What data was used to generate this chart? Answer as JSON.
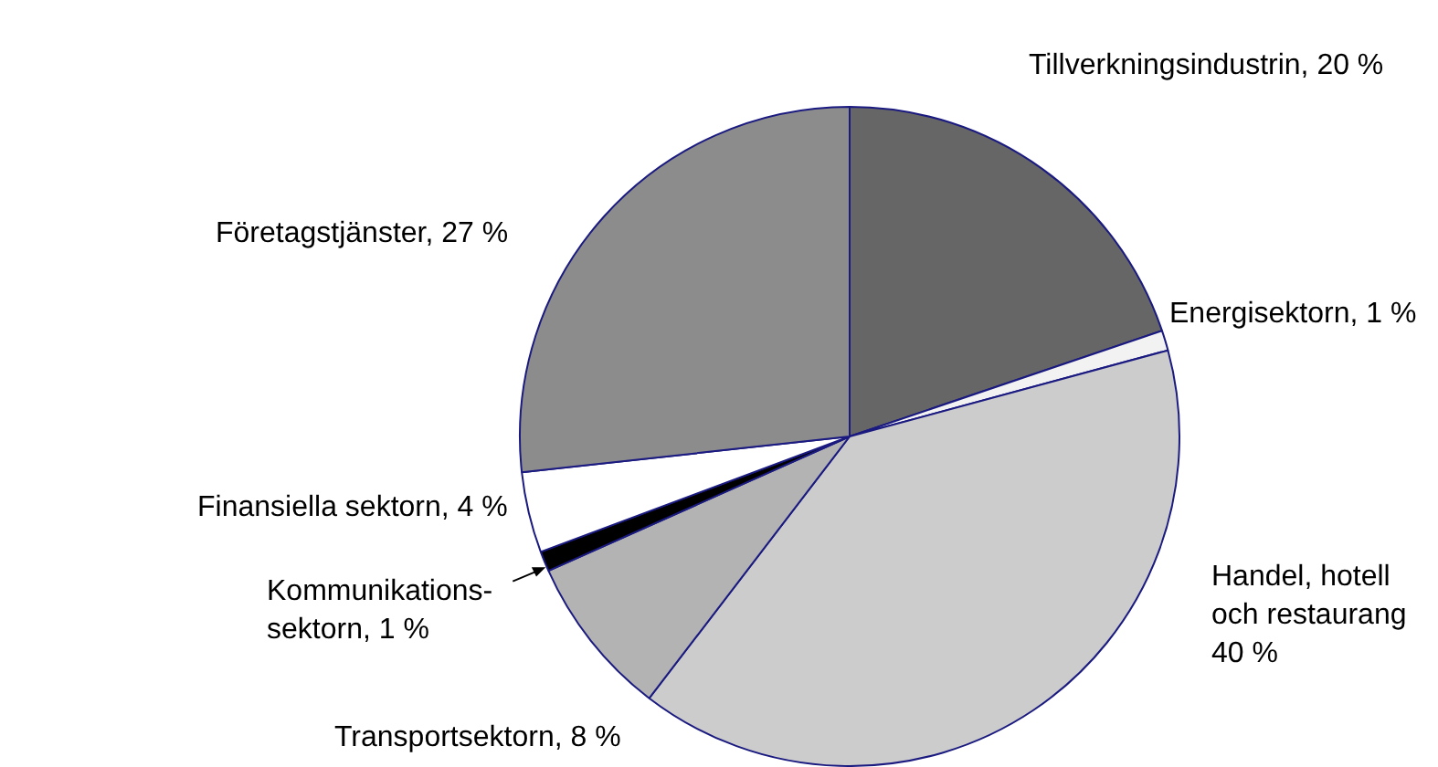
{
  "chart_data": {
    "type": "pie",
    "categories": [
      "Tillverkningsindustrin",
      "Energisektorn",
      "Handel, hotell och restaurang",
      "Transportsektorn",
      "Kommunikations-sektorn",
      "Finansiella sektorn",
      "Företagstjänster"
    ],
    "values": [
      20,
      1,
      40,
      8,
      1,
      4,
      27
    ],
    "value_labels": [
      "20 %",
      "1 %",
      "40 %",
      "8 %",
      "1 %",
      "4 %",
      "27 %"
    ],
    "colors": [
      "#666666",
      "#f2f2f2",
      "#cccccc",
      "#b3b3b3",
      "#000000",
      "#ffffff",
      "#8c8c8c"
    ],
    "legend": false
  }
}
